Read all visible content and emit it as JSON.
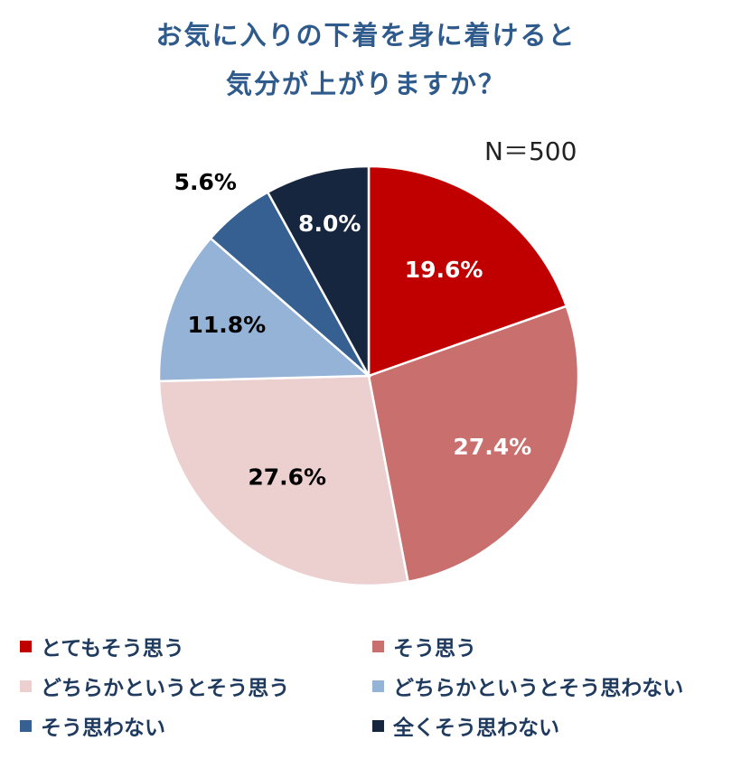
{
  "title_lines": [
    "お気に入りの下着を身に着けると",
    "気分が上がりますか？"
  ],
  "sample_size": "N＝500",
  "chart_data": {
    "type": "pie",
    "categories": [
      "とてもそう思う",
      "そう思う",
      "どちらかというとそう思う",
      "どちらかというとそう思わない",
      "そう思わない",
      "全くそう思わない"
    ],
    "values": [
      19.6,
      27.4,
      27.6,
      11.8,
      5.6,
      8.0
    ],
    "value_labels": [
      "19.6%",
      "27.4%",
      "27.6%",
      "11.8%",
      "5.6%",
      "8.0%"
    ],
    "colors": [
      "#c00000",
      "#c9706e",
      "#eccfcf",
      "#95b3d7",
      "#376092",
      "#17263f"
    ],
    "label_colors": [
      "#ffffff",
      "#ffffff",
      "#000000",
      "#000000",
      "#000000",
      "#ffffff"
    ],
    "legend_position": "bottom"
  }
}
